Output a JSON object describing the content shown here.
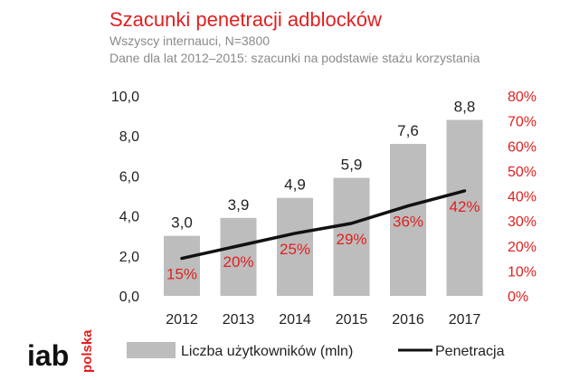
{
  "header": {
    "title": "Szacunki penetracji adblocków",
    "subtitle1": "Wszyscy internauci, N=3800",
    "subtitle2": "Dane dla lat 2012–2015: szacunki na podstawie stażu korzystania"
  },
  "logo": {
    "main": "iab",
    "side": "polska",
    "color": "#e02020"
  },
  "colors": {
    "bar": "#bdbdbd",
    "line": "#111111",
    "accent": "#e02020"
  },
  "chart_data": {
    "type": "bar",
    "title": "Szacunki penetracji adblocków",
    "categories": [
      "2012",
      "2013",
      "2014",
      "2015",
      "2016",
      "2017"
    ],
    "series": [
      {
        "name": "Liczba użytkowników (mln)",
        "type": "bar",
        "axis": "left",
        "values": [
          3.0,
          3.9,
          4.9,
          5.9,
          7.6,
          8.8
        ],
        "labels": [
          "3,0",
          "3,9",
          "4,9",
          "5,9",
          "7,6",
          "8,8"
        ]
      },
      {
        "name": "Penetracja",
        "type": "line",
        "axis": "right",
        "values": [
          15,
          20,
          25,
          29,
          36,
          42
        ],
        "labels": [
          "15%",
          "20%",
          "25%",
          "29%",
          "36%",
          "42%"
        ]
      }
    ],
    "ylim_left": [
      0,
      10
    ],
    "yticks_left": [
      "0,0",
      "2,0",
      "4,0",
      "6,0",
      "8,0",
      "10,0"
    ],
    "ylim_right": [
      0,
      80
    ],
    "yticks_right": [
      "0%",
      "10%",
      "20%",
      "30%",
      "40%",
      "50%",
      "60%",
      "70%",
      "80%"
    ],
    "legend": {
      "position": "bottom",
      "items": [
        "Liczba użytkowników (mln)",
        "Penetracja"
      ]
    },
    "grid": false
  }
}
